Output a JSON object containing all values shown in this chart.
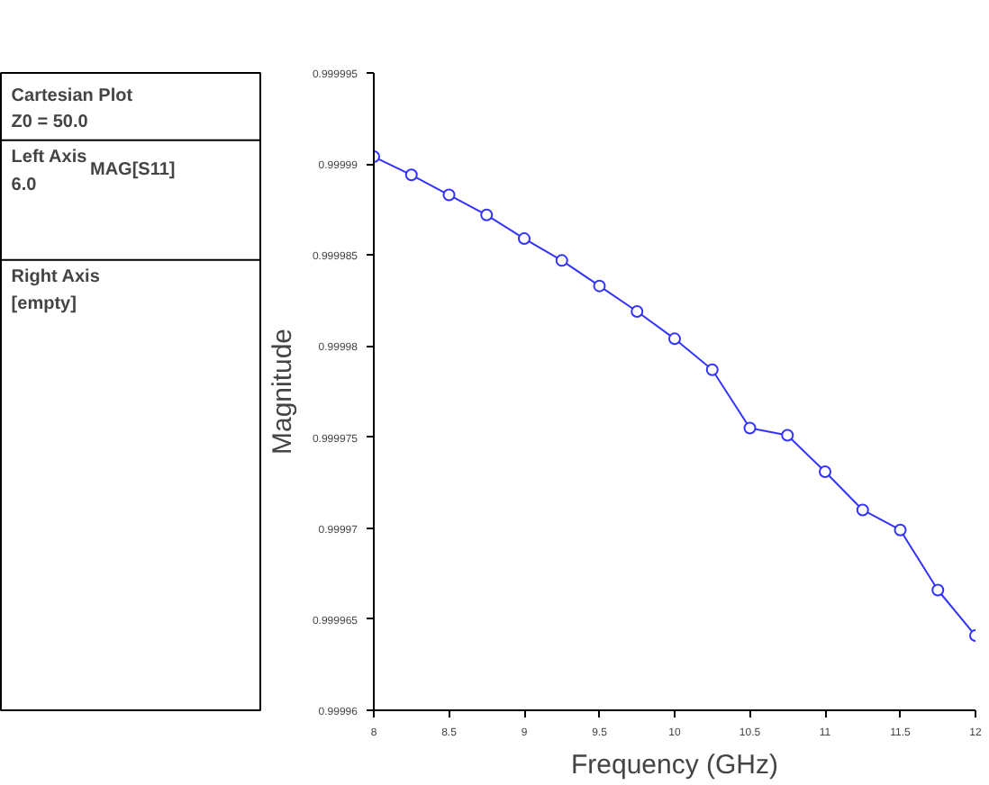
{
  "chart_data": {
    "type": "line",
    "xlabel": "Frequency (GHz)",
    "ylabel": "Magnitude",
    "annotations": [
      "Cartesian Plot",
      "Z0 = 50.0",
      "Left Axis",
      "6.0",
      "Right Axis",
      "[empty]"
    ],
    "x": [
      8,
      8.25,
      8.5,
      8.75,
      9,
      9.25,
      9.5,
      9.75,
      10,
      10.25,
      10.5,
      10.75,
      11,
      11.25,
      11.5,
      11.75,
      12
    ],
    "series": [
      {
        "name": "MAG[S11]",
        "color": "#3333ff",
        "values": [
          0.9999904,
          0.9999894,
          0.9999883,
          0.9999872,
          0.9999859,
          0.9999847,
          0.9999833,
          0.9999819,
          0.9999804,
          0.9999787,
          0.9999755,
          0.9999751,
          0.9999731,
          0.999971,
          0.9999699,
          0.9999666,
          0.9999641
        ]
      }
    ],
    "xlim": [
      8,
      12
    ],
    "xticks": [
      8,
      8.5,
      9,
      9.5,
      10,
      10.5,
      11,
      11.5,
      12
    ],
    "ylim": [
      0.99996,
      0.999995
    ],
    "yticks": [
      0.99996,
      0.999965,
      0.99997,
      0.999975,
      0.99998,
      0.999985,
      0.99999,
      0.999995
    ],
    "grid": false,
    "legend": "left",
    "marker": "circle",
    "line_style": "solid"
  }
}
